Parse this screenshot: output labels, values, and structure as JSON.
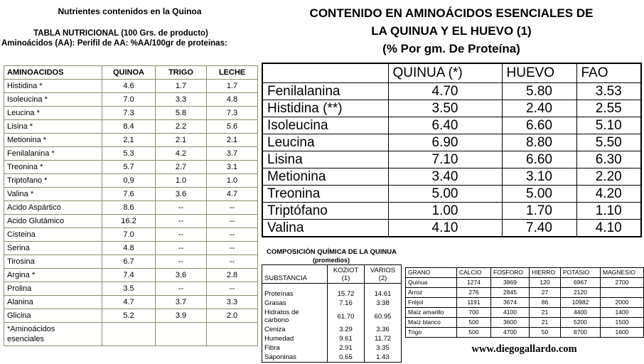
{
  "left": {
    "title": "Nutrientes contenidos en la Quinoa",
    "subtitle1": "TABLA NUTRICIONAL (100 Grs. de producto)",
    "subtitle2": "Aminoácidos (AA): Perifil de AA: %AA/100gr de proteinas:",
    "table": {
      "headers": [
        "AMINOACIDOS",
        "QUINOA",
        "TRIGO",
        "LECHE"
      ],
      "rows": [
        [
          "Histidina *",
          "4.6",
          "1.7",
          "1.7"
        ],
        [
          "Isoleucina *",
          "7.0",
          "3.3",
          "4.8"
        ],
        [
          "Leucina *",
          "7.3",
          "5.8",
          "7.3"
        ],
        [
          "Lisina *",
          "8.4",
          "2.2",
          "5.6"
        ],
        [
          "Metionina *",
          "2,1",
          "2.1",
          "2.1"
        ],
        [
          "Fenilalanina *",
          "5.3",
          "4.2",
          "3.7"
        ],
        [
          "Treonina *",
          "5.7",
          "2.7",
          "3.1"
        ],
        [
          "Triptofano *",
          "0,9",
          "1.0",
          "1.0"
        ],
        [
          "Valina *",
          "7.6",
          "3.6",
          "4.7"
        ],
        [
          "Acido Aspártico",
          "8.6",
          "--",
          "--"
        ],
        [
          "Acido Glutámico",
          "16.2",
          "--",
          "--"
        ],
        [
          "Cisteina",
          "7.0",
          "--",
          "--"
        ],
        [
          "Serina",
          "4.8",
          "--",
          "--"
        ],
        [
          "Tirosina",
          "6.7",
          "--",
          "--"
        ],
        [
          "Argina *",
          "7.4",
          "3.6",
          "2.8"
        ],
        [
          "Prolina",
          "3.5",
          "--",
          "--"
        ],
        [
          "Alanina",
          "4.7",
          "3.7",
          "3.3"
        ],
        [
          "Glicina",
          "5.2",
          "3.9",
          "2.0"
        ],
        [
          "*Aminoácidos\nesenciales",
          "",
          "",
          ""
        ]
      ]
    }
  },
  "right": {
    "title_line1": "CONTENIDO EN AMINOÁCIDOS ESENCIALES DE",
    "title_line2": "LA QUINUA Y EL HUEVO (1)",
    "title_line3": "(% Por gm. De Proteína)",
    "table": {
      "headers": [
        "",
        "QUINUA (*)",
        "HUEVO",
        "FAO"
      ],
      "rows": [
        [
          "Fenilalanina",
          "4.70",
          "5.80",
          "3.53"
        ],
        [
          "Histidina (**)",
          "3.50",
          "2.40",
          "2.55"
        ],
        [
          "Isoleucina",
          "6.40",
          "6.60",
          "5.10"
        ],
        [
          "Leucina",
          "6.90",
          "8.80",
          "5.50"
        ],
        [
          "Lisina",
          "7.10",
          "6.60",
          "6.30"
        ],
        [
          "Metionina",
          "3.40",
          "3.10",
          "2.20"
        ],
        [
          "Treonina",
          "5.00",
          "5.00",
          "4.20"
        ],
        [
          "Triptófano",
          "1.00",
          "1.70",
          "1.10"
        ],
        [
          "Valina",
          "4.10",
          "7.40",
          "4.10"
        ]
      ]
    }
  },
  "composition": {
    "title": "COMPOSICIÓN QUÍMICA DE LA QUINUA",
    "subtitle": "(promedios)",
    "table": {
      "headers": [
        "SUBSTANCIA",
        "KOZIOT\n(1)",
        "VARIOS\n(2)"
      ],
      "rows": [
        [
          "Proteínas",
          "15.72",
          "14.61"
        ],
        [
          "Grasas",
          "7.16",
          "3.38"
        ],
        [
          "Hidratos de\ncarbono",
          "61.70",
          "60.95"
        ],
        [
          "Ceniza",
          "3.29",
          "3.36"
        ],
        [
          "Humedad",
          "9.61",
          "11.72"
        ],
        [
          "Fibra",
          "2.91",
          "3.35"
        ],
        [
          "Saponinas",
          "0.65",
          "1.43"
        ]
      ]
    }
  },
  "minerals": {
    "table": {
      "headers": [
        "GRANO",
        "CALCIO",
        "FOSFORO",
        "HIERRO",
        "POTASIO",
        "MAGNESIO"
      ],
      "rows": [
        [
          "Quinua",
          "1274",
          "3869",
          "120",
          "6967",
          "2700"
        ],
        [
          "Arroz",
          "276",
          "2845",
          "27",
          "2120",
          ""
        ],
        [
          "Fréjol",
          "1191",
          "3674",
          "86",
          "10982",
          "2000"
        ],
        [
          "Maíz amarillo",
          "700",
          "4100",
          "21",
          "4400",
          "1400"
        ],
        [
          "Maíz blanco",
          "500",
          "3600",
          "21",
          "5200",
          "1500"
        ],
        [
          "Trigo",
          "500",
          "4700",
          "50",
          "8700",
          "1600"
        ]
      ]
    }
  },
  "website": "www.diegogallardo.com"
}
